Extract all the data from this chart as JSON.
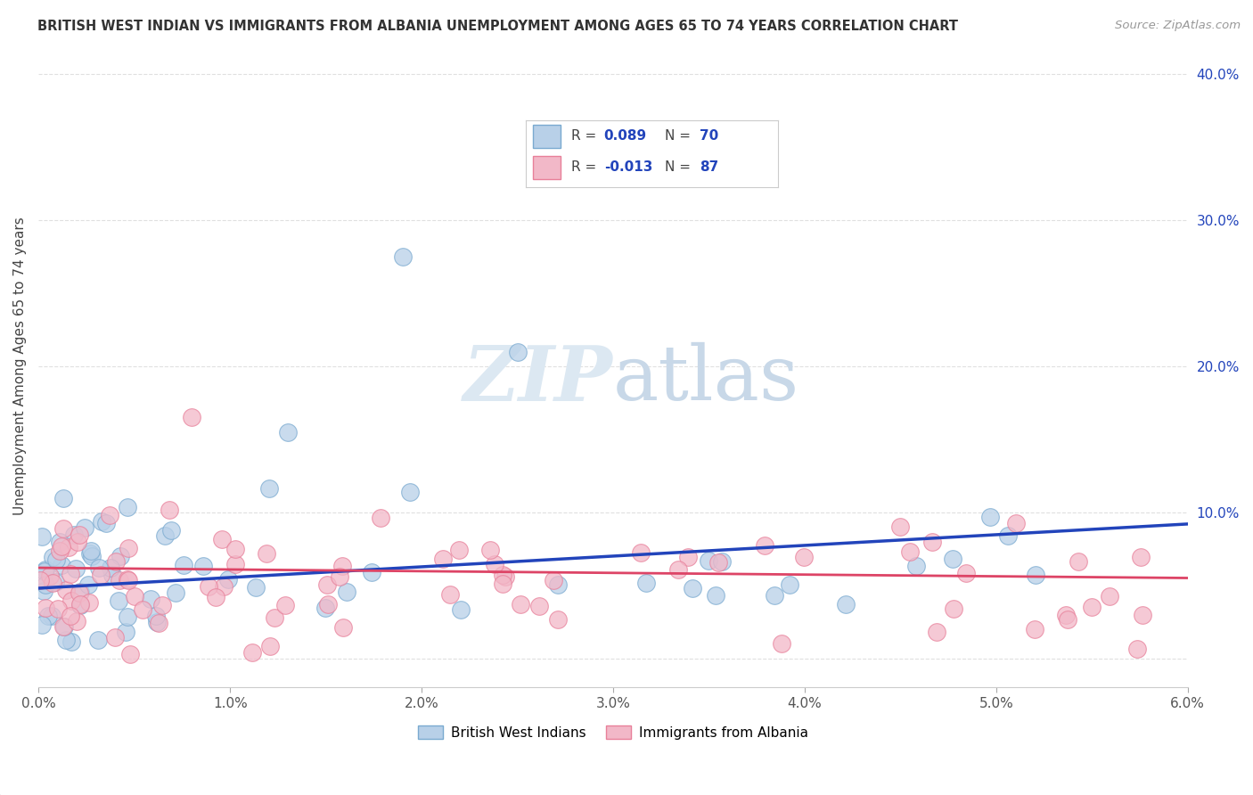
{
  "title": "BRITISH WEST INDIAN VS IMMIGRANTS FROM ALBANIA UNEMPLOYMENT AMONG AGES 65 TO 74 YEARS CORRELATION CHART",
  "source": "Source: ZipAtlas.com",
  "ylabel": "Unemployment Among Ages 65 to 74 years",
  "xlim": [
    0.0,
    0.06
  ],
  "ylim": [
    -0.02,
    0.42
  ],
  "xticks": [
    0.0,
    0.01,
    0.02,
    0.03,
    0.04,
    0.05,
    0.06
  ],
  "xticklabels": [
    "0.0%",
    "1.0%",
    "2.0%",
    "3.0%",
    "4.0%",
    "5.0%",
    "6.0%"
  ],
  "yticks": [
    0.0,
    0.1,
    0.2,
    0.3,
    0.4
  ],
  "yticklabels": [
    "",
    "10.0%",
    "20.0%",
    "30.0%",
    "40.0%"
  ],
  "blue_color": "#b8d0e8",
  "pink_color": "#f2b8c8",
  "blue_edge": "#7aaad0",
  "pink_edge": "#e8809a",
  "trend_blue": "#2244bb",
  "trend_pink": "#dd4466",
  "R_blue": 0.089,
  "N_blue": 70,
  "R_pink": -0.013,
  "N_pink": 87,
  "legend_R_color": "#2244bb",
  "legend_text_color": "#333333",
  "tick_label_color": "#2244bb",
  "ylabel_color": "#444444",
  "watermark_color": "#dce8f2",
  "title_color": "#333333",
  "source_color": "#999999",
  "grid_color": "#cccccc"
}
